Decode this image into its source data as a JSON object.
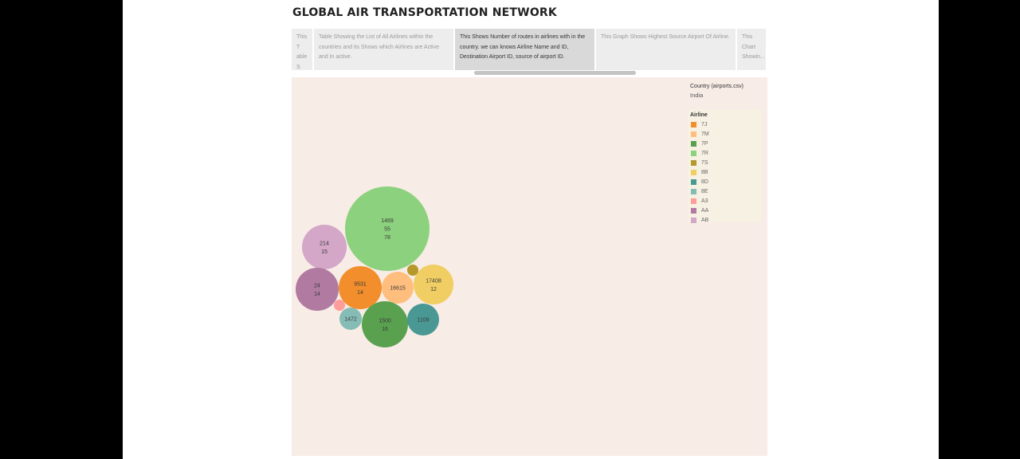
{
  "dashboard": {
    "title": "GLOBAL AIR TRANSPORTATION NETWORK"
  },
  "tabs": [
    {
      "label": "This T able S howi..."
    },
    {
      "label": "Table Showing the List of All Airlines within the countries and its Shows which Airlines are Active and In active."
    },
    {
      "label": "This Shows Number of routes in airlines with in the country. we can knows Airline Name and ID, Destination Airport ID, source of airport ID."
    },
    {
      "label": "This Graph Shows Highest Source Airport Of Airline."
    },
    {
      "label": "This Chart Showin..."
    }
  ],
  "filter": {
    "title": "Country (airports.csv)",
    "value": "India"
  },
  "legend": {
    "title": "Airline",
    "items": [
      {
        "label": "7J",
        "color": "#f28e2b"
      },
      {
        "label": "7M",
        "color": "#ffbe7d"
      },
      {
        "label": "7P",
        "color": "#59a14f"
      },
      {
        "label": "7R",
        "color": "#8cd17d"
      },
      {
        "label": "7S",
        "color": "#b6992d"
      },
      {
        "label": "8B",
        "color": "#f1ce63"
      },
      {
        "label": "8D",
        "color": "#499894"
      },
      {
        "label": "8E",
        "color": "#86bcb6"
      },
      {
        "label": "A3",
        "color": "#ff9d9a"
      },
      {
        "label": "AA",
        "color": "#b07aa1"
      },
      {
        "label": "AB",
        "color": "#d4a6c8"
      }
    ]
  },
  "chart_data": {
    "type": "bubble",
    "series": [
      {
        "airline": "7R",
        "labels": [
          "1469",
          "55",
          "78"
        ],
        "color": "#8cd17d"
      },
      {
        "airline": "AB",
        "labels": [
          "214",
          "15"
        ],
        "color": "#d4a6c8"
      },
      {
        "airline": "AA",
        "labels": [
          "24",
          "14"
        ],
        "color": "#b07aa1"
      },
      {
        "airline": "7J",
        "labels": [
          "9531",
          "14"
        ],
        "color": "#f28e2b"
      },
      {
        "airline": "7M",
        "labels": [
          "16615"
        ],
        "color": "#ffbe7d"
      },
      {
        "airline": "8B",
        "labels": [
          "17408",
          "12"
        ],
        "color": "#f1ce63"
      },
      {
        "airline": "7S",
        "labels": [],
        "color": "#b6992d"
      },
      {
        "airline": "7P",
        "labels": [
          "1500",
          "16"
        ],
        "color": "#59a14f"
      },
      {
        "airline": "8D",
        "labels": [
          "1109"
        ],
        "color": "#499894"
      },
      {
        "airline": "8E",
        "labels": [
          "1472"
        ],
        "color": "#86bcb6"
      },
      {
        "airline": "A3",
        "labels": [],
        "color": "#ff9d9a"
      }
    ]
  }
}
